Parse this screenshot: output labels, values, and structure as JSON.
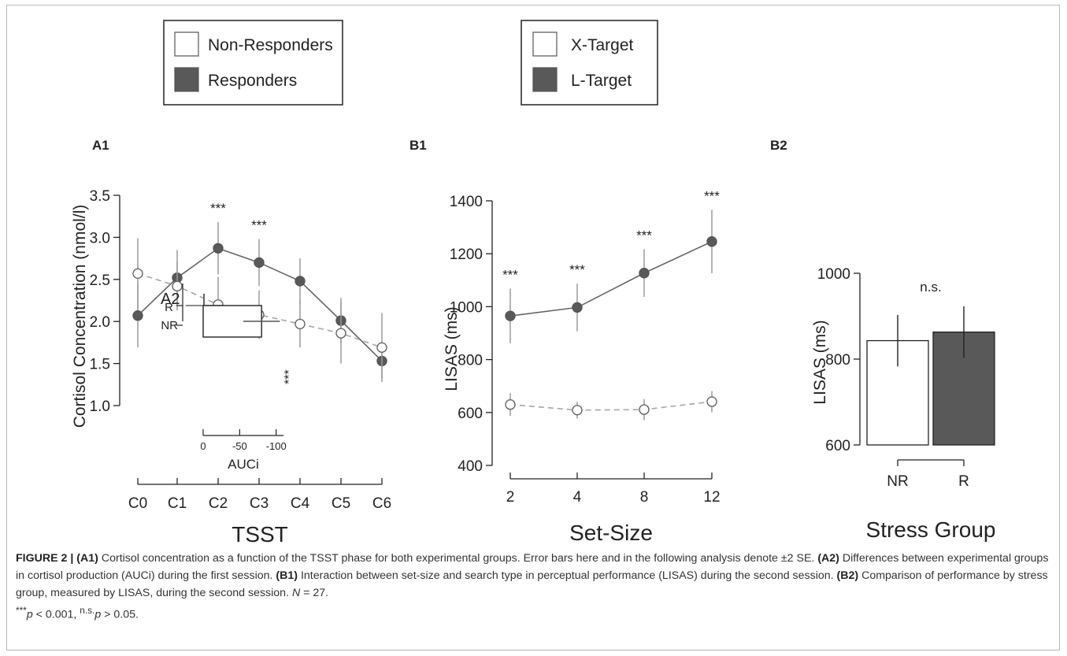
{
  "legends": {
    "group": {
      "items": [
        {
          "label": "Non-Responders",
          "fill": "#ffffff"
        },
        {
          "label": "Responders",
          "fill": "#595959"
        }
      ]
    },
    "target": {
      "items": [
        {
          "label": "X-Target",
          "fill": "#ffffff"
        },
        {
          "label": "L-Target",
          "fill": "#595959"
        }
      ]
    }
  },
  "colors": {
    "filled": "#595959",
    "open": "#ffffff",
    "open_line": "#a6a6a6",
    "err": "#9a9a9a"
  },
  "chart_data": [
    {
      "id": "A1",
      "panel_label": "A1",
      "type": "line",
      "xlabel": "TSST",
      "ylabel": "Cortisol Concentration (nmol/l)",
      "categories": [
        "C0",
        "C1",
        "C2",
        "C3",
        "C4",
        "C5",
        "C6"
      ],
      "yticks": [
        "1.0",
        "1.5",
        "2.0",
        "2.5",
        "3.0",
        "3.5"
      ],
      "ylim": [
        1.0,
        3.5
      ],
      "series": [
        {
          "name": "Responders",
          "style": "filled",
          "values": [
            2.07,
            2.52,
            2.87,
            2.7,
            2.48,
            2.01,
            1.53
          ],
          "err": [
            0.38,
            0.33,
            0.31,
            0.28,
            0.27,
            0.27,
            0.21
          ]
        },
        {
          "name": "Non-Responders",
          "style": "open",
          "values": [
            2.57,
            2.42,
            2.2,
            2.08,
            1.97,
            1.86,
            1.69
          ],
          "err": [
            0.42,
            0.29,
            0.33,
            0.29,
            0.28,
            0.36,
            0.41
          ]
        }
      ],
      "annotations": [
        {
          "x": "C2",
          "text": "***"
        },
        {
          "x": "C3",
          "text": "***"
        }
      ]
    },
    {
      "id": "A2",
      "panel_label": "A2",
      "type": "bar",
      "orientation": "horizontal",
      "xlabel": "AUCi",
      "categories": [
        "R",
        "NR"
      ],
      "xticks": [
        "0",
        "-50",
        "-100"
      ],
      "xlim": [
        0,
        -110
      ],
      "values": [
        -1,
        -80
      ],
      "err": [
        25,
        25
      ],
      "annotation": "***"
    },
    {
      "id": "B1",
      "panel_label": "B1",
      "type": "line",
      "xlabel": "Set-Size",
      "ylabel": "LISAS (ms)",
      "categories": [
        "2",
        "4",
        "8",
        "12"
      ],
      "yticks": [
        "400",
        "600",
        "800",
        "1000",
        "1200",
        "1400"
      ],
      "ylim": [
        400,
        1400
      ],
      "series": [
        {
          "name": "L-Target",
          "style": "filled",
          "values": [
            965,
            997,
            1127,
            1246
          ],
          "err": [
            103,
            90,
            90,
            120
          ]
        },
        {
          "name": "X-Target",
          "style": "open",
          "values": [
            630,
            609,
            611,
            641
          ],
          "err": [
            43,
            32,
            40,
            40
          ]
        }
      ],
      "annotations": [
        {
          "x": "2",
          "text": "***"
        },
        {
          "x": "4",
          "text": "***"
        },
        {
          "x": "8",
          "text": "***"
        },
        {
          "x": "12",
          "text": "***"
        }
      ]
    },
    {
      "id": "B2",
      "panel_label": "B2",
      "type": "bar",
      "xlabel": "Stress Group",
      "ylabel": "LISAS (ms)",
      "categories": [
        "NR",
        "R"
      ],
      "yticks": [
        "600",
        "800",
        "1000"
      ],
      "ylim": [
        600,
        1000
      ],
      "values": [
        843,
        863
      ],
      "err": [
        60,
        60
      ],
      "fills": [
        "#ffffff",
        "#595959"
      ],
      "annotation": "n.s."
    }
  ],
  "caption": {
    "figure": "FIGURE 2 |",
    "a1_label": "(A1)",
    "a1_text": " Cortisol concentration as a function of the TSST phase for both experimental groups. Error bars here and in the following analysis denote ±2 SE.",
    "a2_label": "(A2)",
    "a2_text": " Differences between experimental groups in cortisol production (AUCi) during the first session.",
    "b1_label": "(B1)",
    "b1_text": " Interaction between set-size and search type in perceptual performance (LISAS) during the second session.",
    "b2_label": "(B2)",
    "b2_text": " Comparison of performance by stress group, measured by LISAS, during the second session.",
    "n_label": "N",
    "n_text": " = 27.",
    "sig_stars": "***",
    "p1": "p",
    "p1_text": " < 0.001, ",
    "ns_sup": "n.s.",
    "p2": "p",
    "p2_text": " > 0.05."
  }
}
